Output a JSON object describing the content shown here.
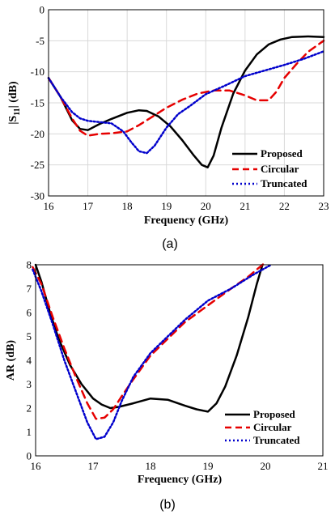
{
  "chart_data": [
    {
      "type": "line",
      "xlabel": "Frequency (GHz)",
      "ylabel_main": "|S",
      "ylabel_sub": "11",
      "ylabel_tail": "| (dB)",
      "xlim": [
        16,
        23
      ],
      "ylim": [
        -30,
        0
      ],
      "xticks": [
        16,
        17,
        18,
        19,
        20,
        21,
        22,
        23
      ],
      "yticks": [
        0,
        -5,
        -10,
        -15,
        -20,
        -25,
        -30
      ],
      "grid": true,
      "legend_position": "bottom-right",
      "panel_label": "(a)",
      "series": [
        {
          "name": "Proposed",
          "color": "#000000",
          "dash": "solid",
          "x": [
            16.0,
            16.3,
            16.6,
            16.8,
            17.0,
            17.3,
            17.6,
            18.0,
            18.3,
            18.5,
            18.8,
            19.1,
            19.4,
            19.7,
            19.9,
            20.05,
            20.2,
            20.4,
            20.7,
            21.0,
            21.3,
            21.6,
            21.9,
            22.2,
            22.6,
            23.0
          ],
          "y": [
            -11,
            -14,
            -17.8,
            -19.2,
            -19.4,
            -18.4,
            -17.6,
            -16.6,
            -16.2,
            -16.3,
            -17.2,
            -18.8,
            -21.0,
            -23.5,
            -25.0,
            -25.4,
            -23.5,
            -19.0,
            -13.5,
            -9.8,
            -7.2,
            -5.6,
            -4.8,
            -4.4,
            -4.3,
            -4.4
          ]
        },
        {
          "name": "Circular",
          "color": "#e60000",
          "dash": "dashed",
          "x": [
            16.0,
            16.3,
            16.6,
            16.8,
            17.0,
            17.3,
            17.6,
            18.0,
            18.3,
            18.6,
            19.0,
            19.4,
            19.8,
            20.2,
            20.6,
            21.0,
            21.3,
            21.6,
            21.8,
            22.0,
            22.3,
            22.6,
            23.0
          ],
          "y": [
            -11,
            -14,
            -17.5,
            -19.5,
            -20.3,
            -20.0,
            -19.9,
            -19.6,
            -18.6,
            -17.4,
            -15.8,
            -14.5,
            -13.5,
            -13.0,
            -13.0,
            -13.8,
            -14.6,
            -14.6,
            -13.2,
            -11.0,
            -8.8,
            -6.8,
            -5.0
          ]
        },
        {
          "name": "Truncated",
          "color": "#0000cc",
          "dash": "dotted",
          "x": [
            16.0,
            16.3,
            16.6,
            16.8,
            17.0,
            17.3,
            17.6,
            17.9,
            18.1,
            18.3,
            18.5,
            18.7,
            19.0,
            19.3,
            19.6,
            20.0,
            20.5,
            21.0,
            21.5,
            22.0,
            22.5,
            23.0
          ],
          "y": [
            -11,
            -14,
            -16.5,
            -17.5,
            -17.9,
            -18.1,
            -18.3,
            -19.6,
            -21.3,
            -22.8,
            -23.1,
            -21.9,
            -19.0,
            -16.8,
            -15.5,
            -13.6,
            -12.2,
            -10.7,
            -9.8,
            -8.9,
            -7.9,
            -6.7
          ]
        }
      ]
    },
    {
      "type": "line",
      "xlabel": "Frequency (GHz)",
      "ylabel": "AR (dB)",
      "xlim": [
        16,
        21
      ],
      "ylim": [
        0,
        8
      ],
      "xticks": [
        16,
        17,
        18,
        19,
        20,
        21
      ],
      "yticks": [
        0,
        1,
        2,
        3,
        4,
        5,
        6,
        7,
        8
      ],
      "grid": false,
      "legend_position": "bottom-right",
      "panel_label": "(b)",
      "series": [
        {
          "name": "Proposed",
          "color": "#000000",
          "dash": "solid",
          "x": [
            16.0,
            16.1,
            16.25,
            16.4,
            16.6,
            16.8,
            17.0,
            17.15,
            17.3,
            17.45,
            17.7,
            18.0,
            18.3,
            18.6,
            18.8,
            19.0,
            19.15,
            19.3,
            19.5,
            19.7,
            19.85,
            19.95
          ],
          "y": [
            8.0,
            7.3,
            6.0,
            4.9,
            3.8,
            3.0,
            2.4,
            2.15,
            2.0,
            2.05,
            2.2,
            2.4,
            2.35,
            2.1,
            1.95,
            1.85,
            2.2,
            2.9,
            4.2,
            5.8,
            7.2,
            8.0
          ]
        },
        {
          "name": "Circular",
          "color": "#e60000",
          "dash": "dashed",
          "x": [
            15.95,
            16.1,
            16.3,
            16.5,
            16.7,
            16.9,
            17.05,
            17.2,
            17.35,
            17.5,
            17.7,
            18.0,
            18.3,
            18.6,
            19.0,
            19.4,
            19.7,
            19.9,
            20.0
          ],
          "y": [
            7.9,
            7.2,
            5.8,
            4.5,
            3.3,
            2.2,
            1.55,
            1.6,
            1.95,
            2.5,
            3.2,
            4.2,
            4.9,
            5.6,
            6.3,
            7.0,
            7.5,
            7.9,
            8.1
          ]
        },
        {
          "name": "Truncated",
          "color": "#0000cc",
          "dash": "dotted",
          "x": [
            15.95,
            16.1,
            16.3,
            16.5,
            16.7,
            16.9,
            17.05,
            17.2,
            17.35,
            17.5,
            17.7,
            18.0,
            18.3,
            18.6,
            19.0,
            19.4,
            19.8,
            20.1
          ],
          "y": [
            7.8,
            6.9,
            5.5,
            4.0,
            2.7,
            1.4,
            0.7,
            0.8,
            1.4,
            2.3,
            3.3,
            4.3,
            5.0,
            5.7,
            6.5,
            7.0,
            7.6,
            8.0
          ]
        }
      ]
    }
  ]
}
